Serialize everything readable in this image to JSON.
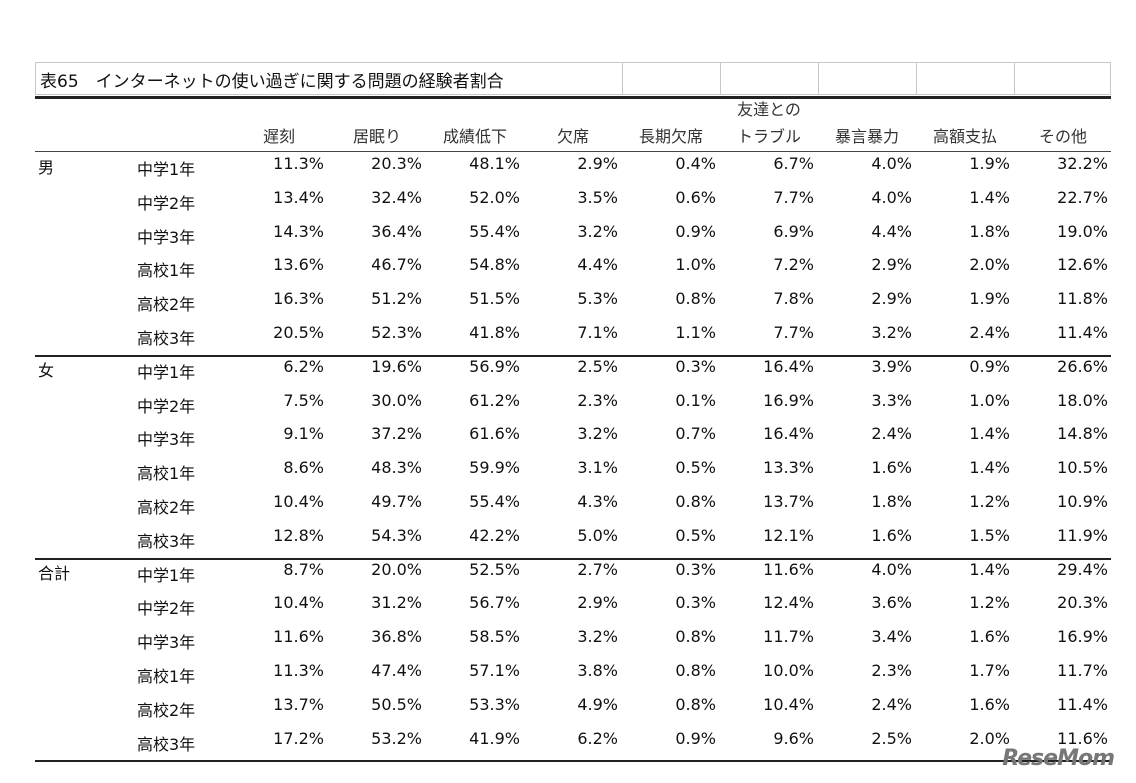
{
  "title": "表65　インターネットの使い過ぎに関する問題の経験者割合",
  "columns": [
    "遅刻",
    "居眠り",
    "成績低下",
    "欠席",
    "長期欠席",
    "友達との\nトラブル",
    "暴言暴力",
    "高額支払",
    "その他"
  ],
  "groups": [
    {
      "label": "男",
      "rows": [
        {
          "grade": "中学1年",
          "values": [
            "11.3%",
            "20.3%",
            "48.1%",
            "2.9%",
            "0.4%",
            "6.7%",
            "4.0%",
            "1.9%",
            "32.2%"
          ]
        },
        {
          "grade": "中学2年",
          "values": [
            "13.4%",
            "32.4%",
            "52.0%",
            "3.5%",
            "0.6%",
            "7.7%",
            "4.0%",
            "1.4%",
            "22.7%"
          ]
        },
        {
          "grade": "中学3年",
          "values": [
            "14.3%",
            "36.4%",
            "55.4%",
            "3.2%",
            "0.9%",
            "6.9%",
            "4.4%",
            "1.8%",
            "19.0%"
          ]
        },
        {
          "grade": "高校1年",
          "values": [
            "13.6%",
            "46.7%",
            "54.8%",
            "4.4%",
            "1.0%",
            "7.2%",
            "2.9%",
            "2.0%",
            "12.6%"
          ]
        },
        {
          "grade": "高校2年",
          "values": [
            "16.3%",
            "51.2%",
            "51.5%",
            "5.3%",
            "0.8%",
            "7.8%",
            "2.9%",
            "1.9%",
            "11.8%"
          ]
        },
        {
          "grade": "高校3年",
          "values": [
            "20.5%",
            "52.3%",
            "41.8%",
            "7.1%",
            "1.1%",
            "7.7%",
            "3.2%",
            "2.4%",
            "11.4%"
          ]
        }
      ]
    },
    {
      "label": "女",
      "rows": [
        {
          "grade": "中学1年",
          "values": [
            "6.2%",
            "19.6%",
            "56.9%",
            "2.5%",
            "0.3%",
            "16.4%",
            "3.9%",
            "0.9%",
            "26.6%"
          ]
        },
        {
          "grade": "中学2年",
          "values": [
            "7.5%",
            "30.0%",
            "61.2%",
            "2.3%",
            "0.1%",
            "16.9%",
            "3.3%",
            "1.0%",
            "18.0%"
          ]
        },
        {
          "grade": "中学3年",
          "values": [
            "9.1%",
            "37.2%",
            "61.6%",
            "3.2%",
            "0.7%",
            "16.4%",
            "2.4%",
            "1.4%",
            "14.8%"
          ]
        },
        {
          "grade": "高校1年",
          "values": [
            "8.6%",
            "48.3%",
            "59.9%",
            "3.1%",
            "0.5%",
            "13.3%",
            "1.6%",
            "1.4%",
            "10.5%"
          ]
        },
        {
          "grade": "高校2年",
          "values": [
            "10.4%",
            "49.7%",
            "55.4%",
            "4.3%",
            "0.8%",
            "13.7%",
            "1.8%",
            "1.2%",
            "10.9%"
          ]
        },
        {
          "grade": "高校3年",
          "values": [
            "12.8%",
            "54.3%",
            "42.2%",
            "5.0%",
            "0.5%",
            "12.1%",
            "1.6%",
            "1.5%",
            "11.9%"
          ]
        }
      ]
    },
    {
      "label": "合計",
      "rows": [
        {
          "grade": "中学1年",
          "values": [
            "8.7%",
            "20.0%",
            "52.5%",
            "2.7%",
            "0.3%",
            "11.6%",
            "4.0%",
            "1.4%",
            "29.4%"
          ]
        },
        {
          "grade": "中学2年",
          "values": [
            "10.4%",
            "31.2%",
            "56.7%",
            "2.9%",
            "0.3%",
            "12.4%",
            "3.6%",
            "1.2%",
            "20.3%"
          ]
        },
        {
          "grade": "中学3年",
          "values": [
            "11.6%",
            "36.8%",
            "58.5%",
            "3.2%",
            "0.8%",
            "11.7%",
            "3.4%",
            "1.6%",
            "16.9%"
          ]
        },
        {
          "grade": "高校1年",
          "values": [
            "11.3%",
            "47.4%",
            "57.1%",
            "3.8%",
            "0.8%",
            "10.0%",
            "2.3%",
            "1.7%",
            "11.7%"
          ]
        },
        {
          "grade": "高校2年",
          "values": [
            "13.7%",
            "50.5%",
            "53.3%",
            "4.9%",
            "0.8%",
            "10.4%",
            "2.4%",
            "1.6%",
            "11.4%"
          ]
        },
        {
          "grade": "高校3年",
          "values": [
            "17.2%",
            "53.2%",
            "41.9%",
            "6.2%",
            "0.9%",
            "9.6%",
            "2.5%",
            "2.0%",
            "11.6%"
          ]
        }
      ]
    }
  ],
  "watermark": "ReseMom"
}
